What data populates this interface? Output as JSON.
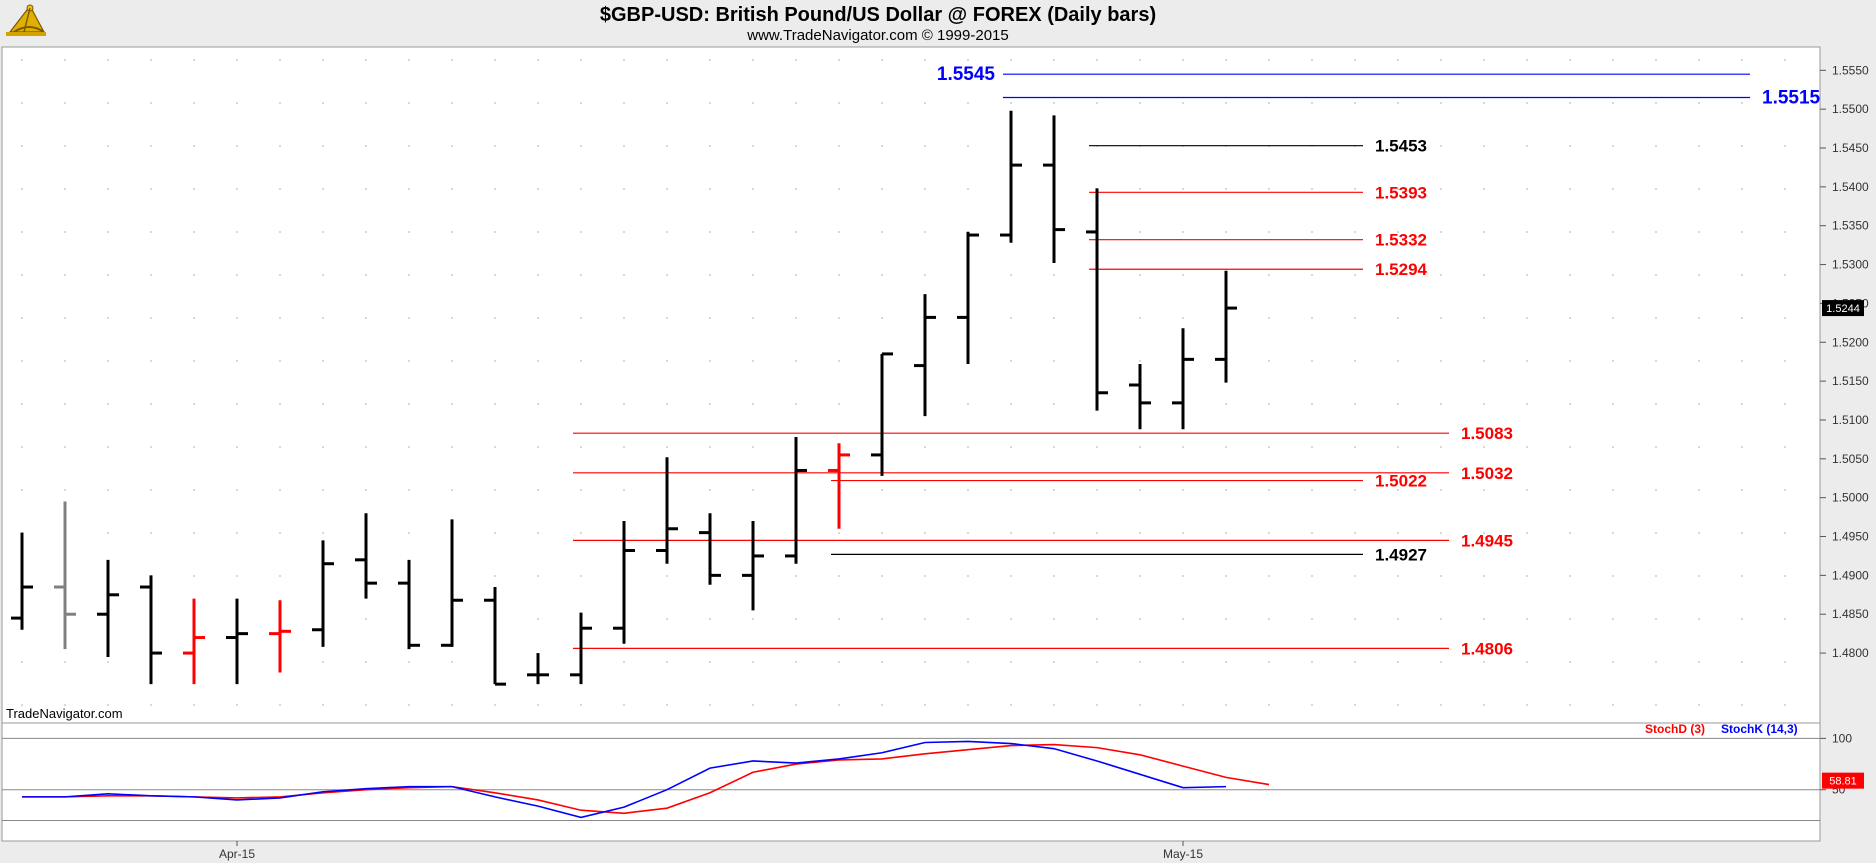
{
  "header": {
    "title": "$GBP-USD:  British Pound/US Dollar @ FOREX  (Daily bars)",
    "subtitle": "www.TradeNavigator.com © 1999-2015"
  },
  "watermark": "TradeNavigator.com",
  "logo_icon": "sextant-logo-icon",
  "colors": {
    "background": "#ffffff",
    "frame": "#ececec",
    "bar": "#000000",
    "bar_gray": "#808080",
    "bar_red": "#ff0000",
    "level_red": "#ff0000",
    "level_black": "#000000",
    "level_blue": "#0000ff",
    "stoch_d": "#ff0000",
    "stoch_k": "#0000ff"
  },
  "chart_data": [
    {
      "type": "ohlc",
      "title": "$GBP-USD:  British Pound/US Dollar @ FOREX  (Daily bars)",
      "ylim": [
        1.471,
        1.558
      ],
      "y_ticks": [
        "1.4800",
        "1.4850",
        "1.4900",
        "1.4950",
        "1.5000",
        "1.5050",
        "1.5100",
        "1.5150",
        "1.5200",
        "1.5250",
        "1.5300",
        "1.5350",
        "1.5400",
        "1.5450",
        "1.5500",
        "1.5550"
      ],
      "x_ticks": [
        {
          "label": "Apr-15",
          "bar": 5
        },
        {
          "label": "May-15",
          "bar": 27
        }
      ],
      "last_price": "1.5244",
      "bars": [
        {
          "o": 1.4845,
          "h": 1.4955,
          "l": 1.483,
          "c": 1.4885,
          "color": "black"
        },
        {
          "o": 1.4885,
          "h": 1.4995,
          "l": 1.4805,
          "c": 1.485,
          "color": "gray"
        },
        {
          "o": 1.485,
          "h": 1.492,
          "l": 1.4795,
          "c": 1.4875,
          "color": "black"
        },
        {
          "o": 1.4885,
          "h": 1.49,
          "l": 1.476,
          "c": 1.48,
          "color": "black"
        },
        {
          "o": 1.48,
          "h": 1.487,
          "l": 1.476,
          "c": 1.482,
          "color": "red"
        },
        {
          "o": 1.482,
          "h": 1.487,
          "l": 1.476,
          "c": 1.4825,
          "color": "black"
        },
        {
          "o": 1.4825,
          "h": 1.4868,
          "l": 1.4775,
          "c": 1.4828,
          "color": "red"
        },
        {
          "o": 1.483,
          "h": 1.4945,
          "l": 1.4808,
          "c": 1.4915,
          "color": "black"
        },
        {
          "o": 1.492,
          "h": 1.498,
          "l": 1.487,
          "c": 1.489,
          "color": "black"
        },
        {
          "o": 1.489,
          "h": 1.492,
          "l": 1.4805,
          "c": 1.481,
          "color": "black"
        },
        {
          "o": 1.481,
          "h": 1.4972,
          "l": 1.4808,
          "c": 1.4868,
          "color": "black"
        },
        {
          "o": 1.4868,
          "h": 1.4885,
          "l": 1.476,
          "c": 1.476,
          "color": "black"
        },
        {
          "o": 1.4772,
          "h": 1.48,
          "l": 1.476,
          "c": 1.4772,
          "color": "black"
        },
        {
          "o": 1.4772,
          "h": 1.4852,
          "l": 1.476,
          "c": 1.4832,
          "color": "black"
        },
        {
          "o": 1.4832,
          "h": 1.497,
          "l": 1.4812,
          "c": 1.4932,
          "color": "black"
        },
        {
          "o": 1.4932,
          "h": 1.5052,
          "l": 1.4915,
          "c": 1.496,
          "color": "black"
        },
        {
          "o": 1.4955,
          "h": 1.498,
          "l": 1.4888,
          "c": 1.49,
          "color": "black"
        },
        {
          "o": 1.49,
          "h": 1.497,
          "l": 1.4855,
          "c": 1.4925,
          "color": "black"
        },
        {
          "o": 1.4925,
          "h": 1.5078,
          "l": 1.4915,
          "c": 1.5035,
          "color": "black"
        },
        {
          "o": 1.5035,
          "h": 1.507,
          "l": 1.496,
          "c": 1.5055,
          "color": "red"
        },
        {
          "o": 1.5055,
          "h": 1.5185,
          "l": 1.5028,
          "c": 1.5185,
          "color": "black"
        },
        {
          "o": 1.517,
          "h": 1.5262,
          "l": 1.5105,
          "c": 1.5232,
          "color": "black"
        },
        {
          "o": 1.5232,
          "h": 1.5342,
          "l": 1.5172,
          "c": 1.5338,
          "color": "black"
        },
        {
          "o": 1.5338,
          "h": 1.5498,
          "l": 1.5328,
          "c": 1.5428,
          "color": "black"
        },
        {
          "o": 1.5428,
          "h": 1.5492,
          "l": 1.5302,
          "c": 1.5345,
          "color": "black"
        },
        {
          "o": 1.5342,
          "h": 1.5398,
          "l": 1.5112,
          "c": 1.5135,
          "color": "black"
        },
        {
          "o": 1.5145,
          "h": 1.5172,
          "l": 1.5088,
          "c": 1.5122,
          "color": "black"
        },
        {
          "o": 1.5122,
          "h": 1.5218,
          "l": 1.5088,
          "c": 1.5178,
          "color": "black"
        },
        {
          "o": 1.5178,
          "h": 1.5292,
          "l": 1.5148,
          "c": 1.5244,
          "color": "black"
        }
      ],
      "levels": [
        {
          "value": 1.5545,
          "label": "1.5545",
          "color": "blue",
          "from_bar": 23,
          "to_bar": 40,
          "label_at": "left",
          "big": true
        },
        {
          "value": 1.5515,
          "label": "1.5515",
          "color": "blue",
          "from_bar": 23,
          "to_bar": 40,
          "label_at": "right",
          "big": true
        },
        {
          "value": 1.5453,
          "label": "1.5453",
          "color": "black",
          "from_bar": 25,
          "to_bar": 31,
          "label_at": "right"
        },
        {
          "value": 1.5393,
          "label": "1.5393",
          "color": "red",
          "from_bar": 25,
          "to_bar": 31,
          "label_at": "right"
        },
        {
          "value": 1.5332,
          "label": "1.5332",
          "color": "red",
          "from_bar": 25,
          "to_bar": 31,
          "label_at": "right"
        },
        {
          "value": 1.5294,
          "label": "1.5294",
          "color": "red",
          "from_bar": 25,
          "to_bar": 31,
          "label_at": "right"
        },
        {
          "value": 1.5083,
          "label": "1.5083",
          "color": "red",
          "from_bar": 13,
          "to_bar": 33,
          "label_at": "right"
        },
        {
          "value": 1.5032,
          "label": "1.5032",
          "color": "red",
          "from_bar": 13,
          "to_bar": 33,
          "label_at": "right"
        },
        {
          "value": 1.5022,
          "label": "1.5022",
          "color": "red",
          "from_bar": 19,
          "to_bar": 31,
          "label_at": "right"
        },
        {
          "value": 1.4945,
          "label": "1.4945",
          "color": "red",
          "from_bar": 13,
          "to_bar": 33,
          "label_at": "right"
        },
        {
          "value": 1.4927,
          "label": "1.4927",
          "color": "black",
          "from_bar": 19,
          "to_bar": 31,
          "label_at": "right"
        },
        {
          "value": 1.4806,
          "label": "1.4806",
          "color": "red",
          "from_bar": 13,
          "to_bar": 33,
          "label_at": "right"
        }
      ]
    },
    {
      "type": "line",
      "ylim": [
        0,
        115
      ],
      "y_ticks": [
        "100",
        "50"
      ],
      "last_value": "58.81",
      "series": [
        {
          "name": "StochD (3)",
          "color": "red",
          "values": [
            43,
            43,
            44,
            44,
            43,
            42,
            43,
            47,
            50,
            52,
            53,
            47,
            40,
            30,
            27,
            32,
            47,
            67,
            75,
            79,
            80,
            85,
            89,
            93,
            94,
            91,
            84,
            73,
            62,
            55
          ]
        },
        {
          "name": "StochK (14,3)",
          "color": "blue",
          "values": [
            43,
            43,
            46,
            44,
            43,
            40,
            42,
            48,
            51,
            53,
            53,
            43,
            34,
            23,
            33,
            50,
            71,
            78,
            76,
            80,
            86,
            96,
            97,
            95,
            90,
            78,
            65,
            52,
            53,
            null
          ]
        }
      ]
    }
  ]
}
